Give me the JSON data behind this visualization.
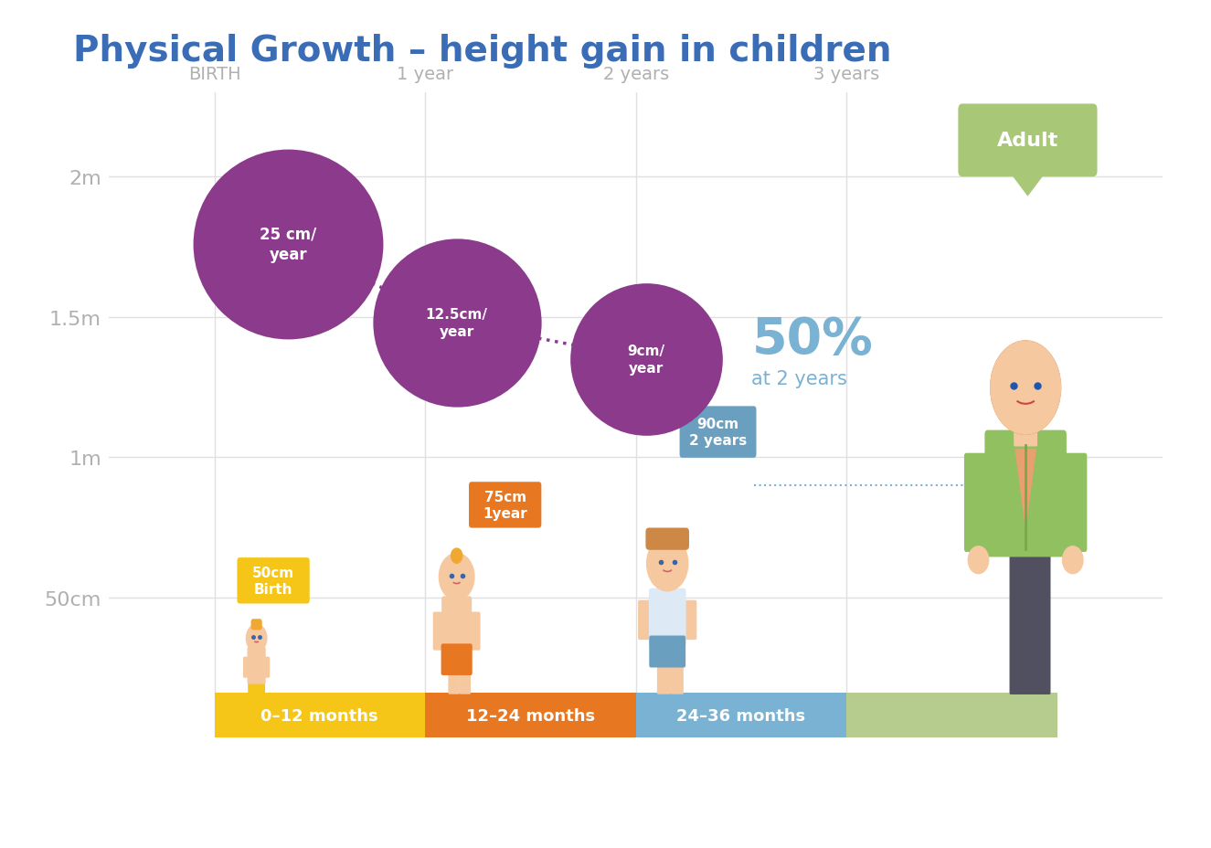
{
  "title": "Physical Growth – height gain in children",
  "title_color": "#3a6db5",
  "background_color": "#ffffff",
  "axis_label_color": "#b0b0b0",
  "ytick_labels": [
    "50cm",
    "1m",
    "1.5m",
    "2m"
  ],
  "ytick_values": [
    0.5,
    1.0,
    1.5,
    2.0
  ],
  "xtick_labels": [
    "BIRTH",
    "1 year",
    "2 years",
    "3 years"
  ],
  "xtick_positions": [
    0.5,
    1.5,
    2.5,
    3.5
  ],
  "bar_colors": [
    "#f5c518",
    "#e87722",
    "#7ab2d3",
    "#b5cc8e"
  ],
  "bar_labels": [
    "0–12 months",
    "12–24 months",
    "24–36 months",
    ""
  ],
  "bubble_color": "#8b3a8c",
  "adult_box_color": "#a8c878",
  "adult_label": "Adult",
  "dotted_line_color": "#8b3a8c",
  "horizontal_line_color": "#7ab2d3",
  "grid_color": "#e0e0e0",
  "skin_color": "#f5c8a0",
  "hair_orange": "#d4722a",
  "hair_yellow": "#f0a830",
  "shirt_white": "#ddeaf5",
  "shirt_green": "#90c060",
  "pants_yellow": "#f5c518",
  "pants_orange": "#e87722",
  "pants_blue": "#6a9fc0",
  "pants_dark": "#505060",
  "fifty_percent_color": "#7ab2d3",
  "height_box_yellow": "#f5c518",
  "height_box_orange": "#e87722",
  "height_box_blue": "#6a9fc0"
}
